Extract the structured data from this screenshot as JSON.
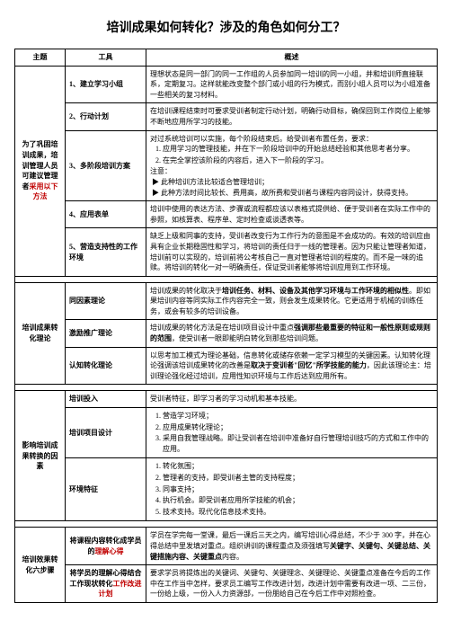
{
  "title": "培训成果如何转化？涉及的角色如何分工？",
  "headers": {
    "theme": "主题",
    "tool": "工具",
    "desc": "概述"
  },
  "sec1": {
    "theme_pre": "为了巩固培训成果，培训管理人员可建议管理者",
    "theme_red": "采用以下方法",
    "r1_tool": "1、建立学习小组",
    "r1_desc": "理想状态是同一部门的同一工作组的人员参加同一培训的同一小组，并和培训师直接联系，定期复习。这样就能改变整个部门或小组的行为模式，而别小组人员可以为小组准备一些相关的复习材料。",
    "r2_tool": "2、行动计划",
    "r2_desc": "在培训课程结束时可要求受训者制定行动计划，明确行动目标，确保回到工作岗位上能够不断地应用所学习的技能。",
    "r3_tool": "3、多阶段培训方案",
    "r3_p1": "对过系统培训可以实施，每个阶段结束后。给受训者布置任务，要求：",
    "r3_li1": "应用学习的管理技能，并在下一阶段培训中的开始总结经验和其他思考者分享。",
    "r3_li2": "在完全掌控该阶段的内容后，进入下一阶段的学习。",
    "r3_note": "注意：",
    "r3_a1": "▶ 此种培训方法比较适合管理培训；",
    "r3_a2": "▶ 此种方法时间比较长、费用高，故所费和受训者与课程内容同设计，获得支持。",
    "r4_tool": "4、应用表单",
    "r4_desc": "培训中使用的表达方法、步骤或流程都应该以表格式提供给、便于受训者在实际工作中的参照，如核算表、程序单、定时检查或谈透表等。",
    "r5_tool": "5、营造支持性的工作环境",
    "r5_desc": "缺乏上级和同事的支持，受训者改变行为工作行为的意图是不会成功的。有效的培训应由具有企业长期稳固性和学习，将培训的责任归于一线的管理者。因为只能让管理者知道，培训前可以实现的，培训前将公考核自己一直对管理者培训的程度的。而不是一味的追赎。将培训的转化一对一明确责任，保证受训者能够将培训应用到工作环境。"
  },
  "sec2": {
    "theme": "培训成果转化理论",
    "r1_tool": "同因素理论",
    "r1_desc_pre": "培训成果的转化取决于",
    "r1_desc_bold": "培训任务、材料、设备及其他学习环境与工作环境的相似性",
    "r1_desc_post": "。即如果培训内容等同实际工作内容完全一致，则会发生成果转化。它更适用于机械的训练任务，或会有较多的培训设备。",
    "r2_tool": "激励推广理论",
    "r2_desc_pre": "培训成果的转化方法是在培训项目设计中重点",
    "r2_desc_bold": "强调那些最重要的特征和一般性原则或规则的范围",
    "r2_desc_post": "，使受训者一眼即能明白转化到那些培训问题。",
    "r3_tool": "认知转化理论",
    "r3_desc_pre": "以思考加工模式为理论基础，信息转化或储存依赖一定学习模型的关键因素。认知转化理论强调该培训成果转化的改善是",
    "r3_desc_bold": "取决于变训者\"回忆\"所学技能的能力",
    "r3_desc_post": "，因此该理论主：培训理论强化经过培训，应用性知识环境与工作后达到应用所有。"
  },
  "sec3": {
    "theme": "影响培训成果转换的因素",
    "r1_tool": "培训投入",
    "r1_desc": "受训者特征，即学习者的学习动机和基本技能。",
    "r2_tool": "培训项目设计",
    "r2_li1": "营造学习环境；",
    "r2_li2": "应用成果转化理论；",
    "r2_li3": "采用自我管理战略。即让受训者在培训中准备好自行管理培训技巧的方式和工作中的应用。",
    "r3_tool": "环境特征",
    "r3_li1": "转化氛围；",
    "r3_li2": "管理者的支持，即受训者主管的支持程度；",
    "r3_li3": "同事支持；",
    "r3_li4": "执行机会。即受训者应用所学技能的机会；",
    "r3_li5": "技术支持。现代化信息技术支持。"
  },
  "sec4": {
    "theme": "培训效果转化六步骤",
    "r1_tool_pre": "将课程内容转化成学员的",
    "r1_tool_red": "理解心得",
    "r1_desc_pre": "学员在学完每一堂课，最后一课后三天之内，编写培训心得总结，不少于 300 字，并在心得总结中里发填对重点。组织讲训的课程重点及须强填写",
    "r1_desc_bold": "关键字、关键句、关键总结、关键措施内容、关键重点",
    "r1_desc_post": "内容。",
    "r2_tool_pre": "将学员的理解心得结合工作现状转化",
    "r2_tool_red": "工作改进计划",
    "r2_desc": "要求学员将提炼出的关键词、关键句、关键理念、关键理论、关键重点准备在今后的工作中在工作当中怎样，要求员工编写工作改进计划，改进计划中需要有改进一项、二三份，一份给上级，一份入人力资源部，一份朋给自己在今后工作中对照检查。"
  }
}
